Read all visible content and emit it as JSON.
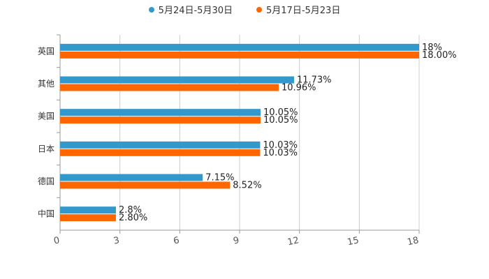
{
  "chart_data": {
    "type": "bar",
    "orientation": "horizontal",
    "categories": [
      "英国",
      "其他",
      "美国",
      "日本",
      "德国",
      "中国"
    ],
    "series": [
      {
        "name": "5月24日-5月30日",
        "color": "#3399cc",
        "values": [
          18,
          11.73,
          10.05,
          10.03,
          7.15,
          2.8
        ],
        "labels": [
          "18%",
          "11.73%",
          "10.05%",
          "10.03%",
          "7.15%",
          "2.8%"
        ]
      },
      {
        "name": "5月17日-5月23日",
        "color": "#ff6600",
        "values": [
          18.0,
          10.96,
          10.05,
          10.03,
          8.52,
          2.8
        ],
        "labels": [
          "18.00%",
          "10.96%",
          "10.05%",
          "10.03%",
          "8.52%",
          "2.80%"
        ]
      }
    ],
    "xlim": [
      0,
      18
    ],
    "xticks": [
      0,
      3,
      6,
      9,
      12,
      15,
      18
    ],
    "xtick_labels": [
      "0",
      "3",
      "6",
      "9",
      "12",
      "15",
      "18"
    ],
    "grid": true,
    "legend_position": "top-center",
    "title": "",
    "xlabel": "",
    "ylabel": ""
  }
}
